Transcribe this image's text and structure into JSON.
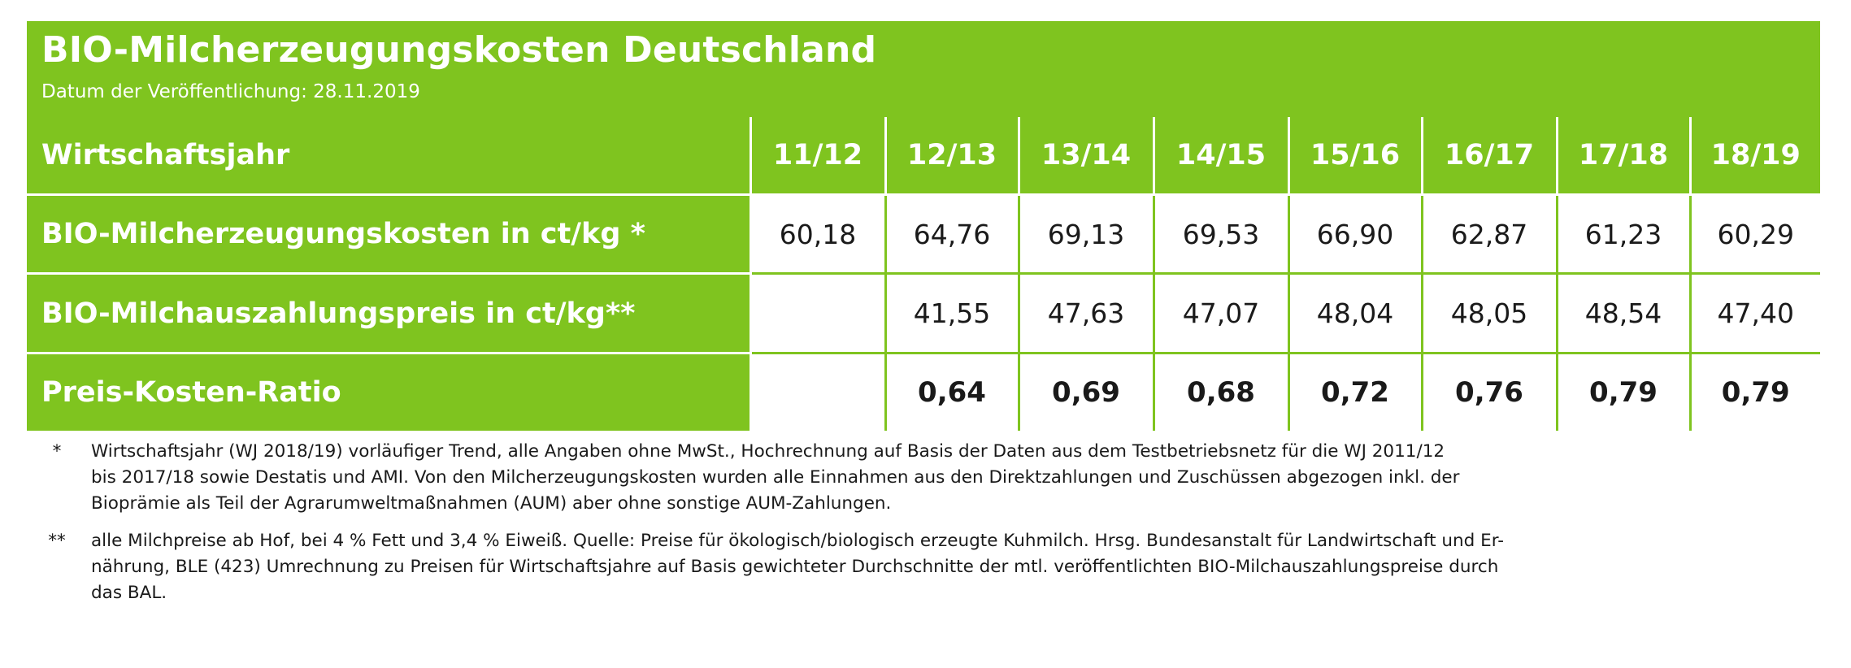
{
  "header": {
    "title": "BIO-Milcherzeugungskosten Deutschland",
    "subtitle": "Datum der Veröffentlichung: 28.11.2019"
  },
  "table": {
    "header_label": "Wirtschaftsjahr",
    "years": [
      "11/12",
      "12/13",
      "13/14",
      "14/15",
      "15/16",
      "16/17",
      "17/18",
      "18/19"
    ],
    "rows": [
      {
        "label": "BIO-Milcherzeugungskosten in ct/kg *",
        "values": [
          "60,18",
          "64,76",
          "69,13",
          "69,53",
          "66,90",
          "62,87",
          "61,23",
          "60,29"
        ]
      },
      {
        "label": "BIO-Milchauszahlungspreis in ct/kg**",
        "values": [
          "",
          "41,55",
          "47,63",
          "47,07",
          "48,04",
          "48,05",
          "48,54",
          "47,40"
        ]
      },
      {
        "label": "Preis-Kosten-Ratio",
        "values": [
          "",
          "0,64",
          "0,69",
          "0,68",
          "0,72",
          "0,76",
          "0,79",
          "0,79"
        ]
      }
    ]
  },
  "footnotes": [
    {
      "mark": "*",
      "lines": [
        "Wirtschaftsjahr (WJ 2018/19) vorläufiger Trend, alle Angaben ohne MwSt., Hochrechnung auf Basis der Daten aus dem Testbetriebsnetz für die WJ 2011/12",
        "bis 2017/18 sowie Destatis und AMI. Von den Milcherzeugungskosten wurden alle Einnahmen aus den Direktzahlungen und Zuschüssen abgezogen inkl. der",
        "Bioprämie als Teil der Agrarumweltmaßnahmen (AUM) aber ohne sonstige AUM-Zahlungen."
      ]
    },
    {
      "mark": "**",
      "lines": [
        "alle Milchpreise ab Hof, bei 4 % Fett und 3,4 % Eiweiß. Quelle: Preise für ökologisch/biologisch erzeugte Kuhmilch. Hrsg. Bundesanstalt für Landwirtschaft und Er-",
        "nährung, BLE (423) Umrechnung zu Preisen für Wirtschaftsjahre auf Basis gewichteter Durchschnitte der mtl. veröffentlichten BIO-Milchauszahlungspreise durch",
        "das BAL."
      ]
    }
  ],
  "colors": {
    "brand_green": "#7fc41f",
    "text": "#1a1a1a",
    "background": "#ffffff"
  }
}
